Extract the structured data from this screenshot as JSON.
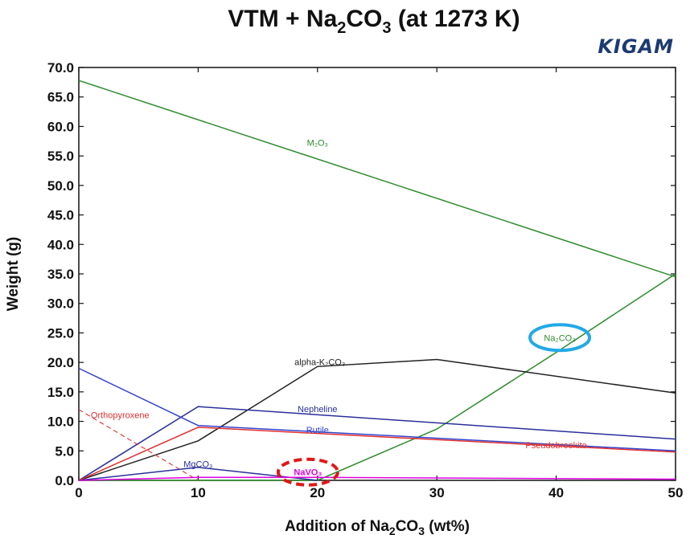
{
  "chart_data": {
    "type": "line",
    "title": "VTM + Na2CO3 (at 1273 K)",
    "logo": "KIGAM",
    "xlabel": "Addition of Na2CO3 (wt%)",
    "ylabel": "Weight (g)",
    "xlim": [
      0,
      50
    ],
    "ylim": [
      0,
      70
    ],
    "x_ticks": [
      0,
      10,
      20,
      30,
      40,
      50
    ],
    "y_ticks": [
      0,
      5,
      10,
      15,
      20,
      25,
      30,
      35,
      40,
      45,
      50,
      55,
      60,
      65,
      70
    ],
    "y_tick_labels": [
      "0.0",
      "5.0",
      "10.0",
      "15.0",
      "20.0",
      "25.0",
      "30.0",
      "35.0",
      "40.0",
      "45.0",
      "50.0",
      "55.0",
      "60.0",
      "65.0",
      "70.0"
    ],
    "grid": false,
    "series": [
      {
        "name": "M2O3",
        "label": "M₂O₃",
        "color": "#2e8b2e",
        "x": [
          0,
          50
        ],
        "y": [
          67.8,
          34.5
        ],
        "label_at": [
          20,
          57.3
        ]
      },
      {
        "name": "Na2CO3",
        "label": "Na₂CO₃",
        "color": "#2e8b2e",
        "x": [
          0,
          10,
          20,
          30,
          40,
          50
        ],
        "y": [
          0,
          0,
          0,
          8.7,
          21.7,
          35.0
        ],
        "label_at": [
          40.3,
          24.2
        ]
      },
      {
        "name": "alpha-K2CO3",
        "label": "alpha-K₂CO₃",
        "color": "#222222",
        "x": [
          0,
          10,
          20,
          30,
          50
        ],
        "y": [
          0,
          6.7,
          19.3,
          20.5,
          14.8
        ],
        "label_at": [
          20.2,
          20.1
        ]
      },
      {
        "name": "Nepheline",
        "label": "Nepheline",
        "color": "#2a2f9a",
        "x": [
          0,
          10,
          50
        ],
        "y": [
          0,
          12.5,
          7.0
        ],
        "label_at": [
          20,
          12.1
        ]
      },
      {
        "name": "Rutile",
        "label": "Rutile",
        "color": "#3344cc",
        "x": [
          0,
          10,
          50
        ],
        "y": [
          19.0,
          9.3,
          5.0
        ],
        "label_at": [
          20,
          8.6
        ]
      },
      {
        "name": "Pseudobrookite",
        "label": "Pseudobrookite",
        "color": "#e03030",
        "x": [
          0,
          10,
          50
        ],
        "y": [
          0,
          9.0,
          4.8
        ],
        "label_at": [
          40,
          6.0
        ]
      },
      {
        "name": "Orthopyroxene",
        "label": "Orthopyroxene",
        "color": "#e03030",
        "dashed": true,
        "x": [
          0,
          10
        ],
        "y": [
          12.0,
          0
        ],
        "label_at": [
          1,
          11.1
        ]
      },
      {
        "name": "MgCO3",
        "label": "MgCO₃",
        "color": "#2a2f9a",
        "x": [
          0,
          10,
          20
        ],
        "y": [
          0,
          2.2,
          0
        ],
        "label_at": [
          10,
          2.8
        ]
      },
      {
        "name": "NaVO3",
        "label": "NaVO₃",
        "color": "#e000e0",
        "x": [
          0,
          10,
          20,
          50
        ],
        "y": [
          0,
          0.5,
          0.5,
          0.2
        ],
        "label_at": [
          19.2,
          1.4
        ]
      }
    ],
    "highlights": [
      {
        "series": "Na2CO3",
        "color": "#22a9e6",
        "dashed": false
      },
      {
        "series": "NaVO3",
        "color": "#e01818",
        "dashed": true
      }
    ]
  }
}
